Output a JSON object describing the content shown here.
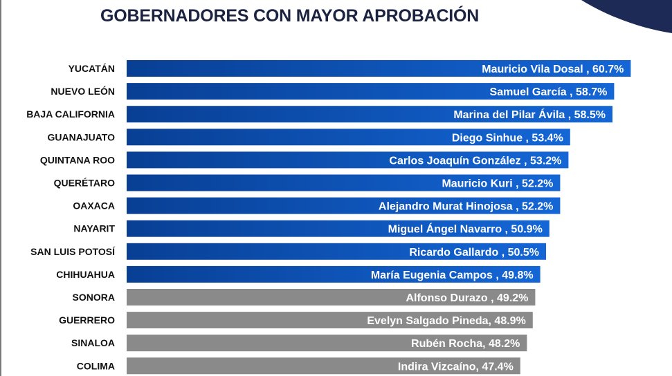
{
  "chart_data": {
    "type": "bar",
    "orientation": "horizontal",
    "title": "GOBERNADORES CON MAYOR APROBACIÓN",
    "xlabel": "",
    "ylabel": "",
    "xlim": [
      0,
      100
    ],
    "grid": false,
    "legend": "none",
    "categories": [
      "YUCATÁN",
      "NUEVO LEÓN",
      "BAJA CALIFORNIA",
      "GUANAJUATO",
      "QUINTANA ROO",
      "QUERÉTARO",
      "OAXACA",
      "NAYARIT",
      "SAN LUIS POTOSÍ",
      "CHIHUAHUA",
      "SONORA",
      "GUERRERO",
      "SINALOA",
      "COLIMA"
    ],
    "values": [
      60.7,
      58.7,
      58.5,
      53.4,
      53.2,
      52.2,
      52.2,
      50.9,
      50.5,
      49.8,
      49.2,
      48.9,
      48.2,
      47.4
    ],
    "data_labels": [
      "Mauricio Vila Dosal , 60.7%",
      "Samuel García , 58.7%",
      "Marina del Pilar Ávila , 58.5%",
      "Diego Sinhue , 53.4%",
      "Carlos Joaquín González , 53.2%",
      "Mauricio Kuri , 52.2%",
      "Alejandro Murat Hinojosa , 52.2%",
      "Miguel Ángel Navarro , 50.9%",
      "Ricardo Gallardo , 50.5%",
      "María Eugenia Campos , 49.8%",
      "Alfonso Durazo , 49.2%",
      "Evelyn Salgado Pineda, 48.9%",
      "Rubén Rocha, 48.2%",
      "Indira Vizcaíno, 47.4%"
    ],
    "bar_colors": [
      "#0b4fb2",
      "#0b4fb2",
      "#0b4fb2",
      "#0b4fb2",
      "#0b4fb2",
      "#0b4fb2",
      "#0b4fb2",
      "#0b4fb2",
      "#0b4fb2",
      "#0b4fb2",
      "#8a8a8a",
      "#8a8a8a",
      "#8a8a8a",
      "#8a8a8a"
    ]
  },
  "colors": {
    "blue_dark": "#083f94",
    "blue_light": "#1466d6",
    "gray": "#8a8a8a",
    "corner_shape": "#1c2a55",
    "title": "#1c2340"
  }
}
